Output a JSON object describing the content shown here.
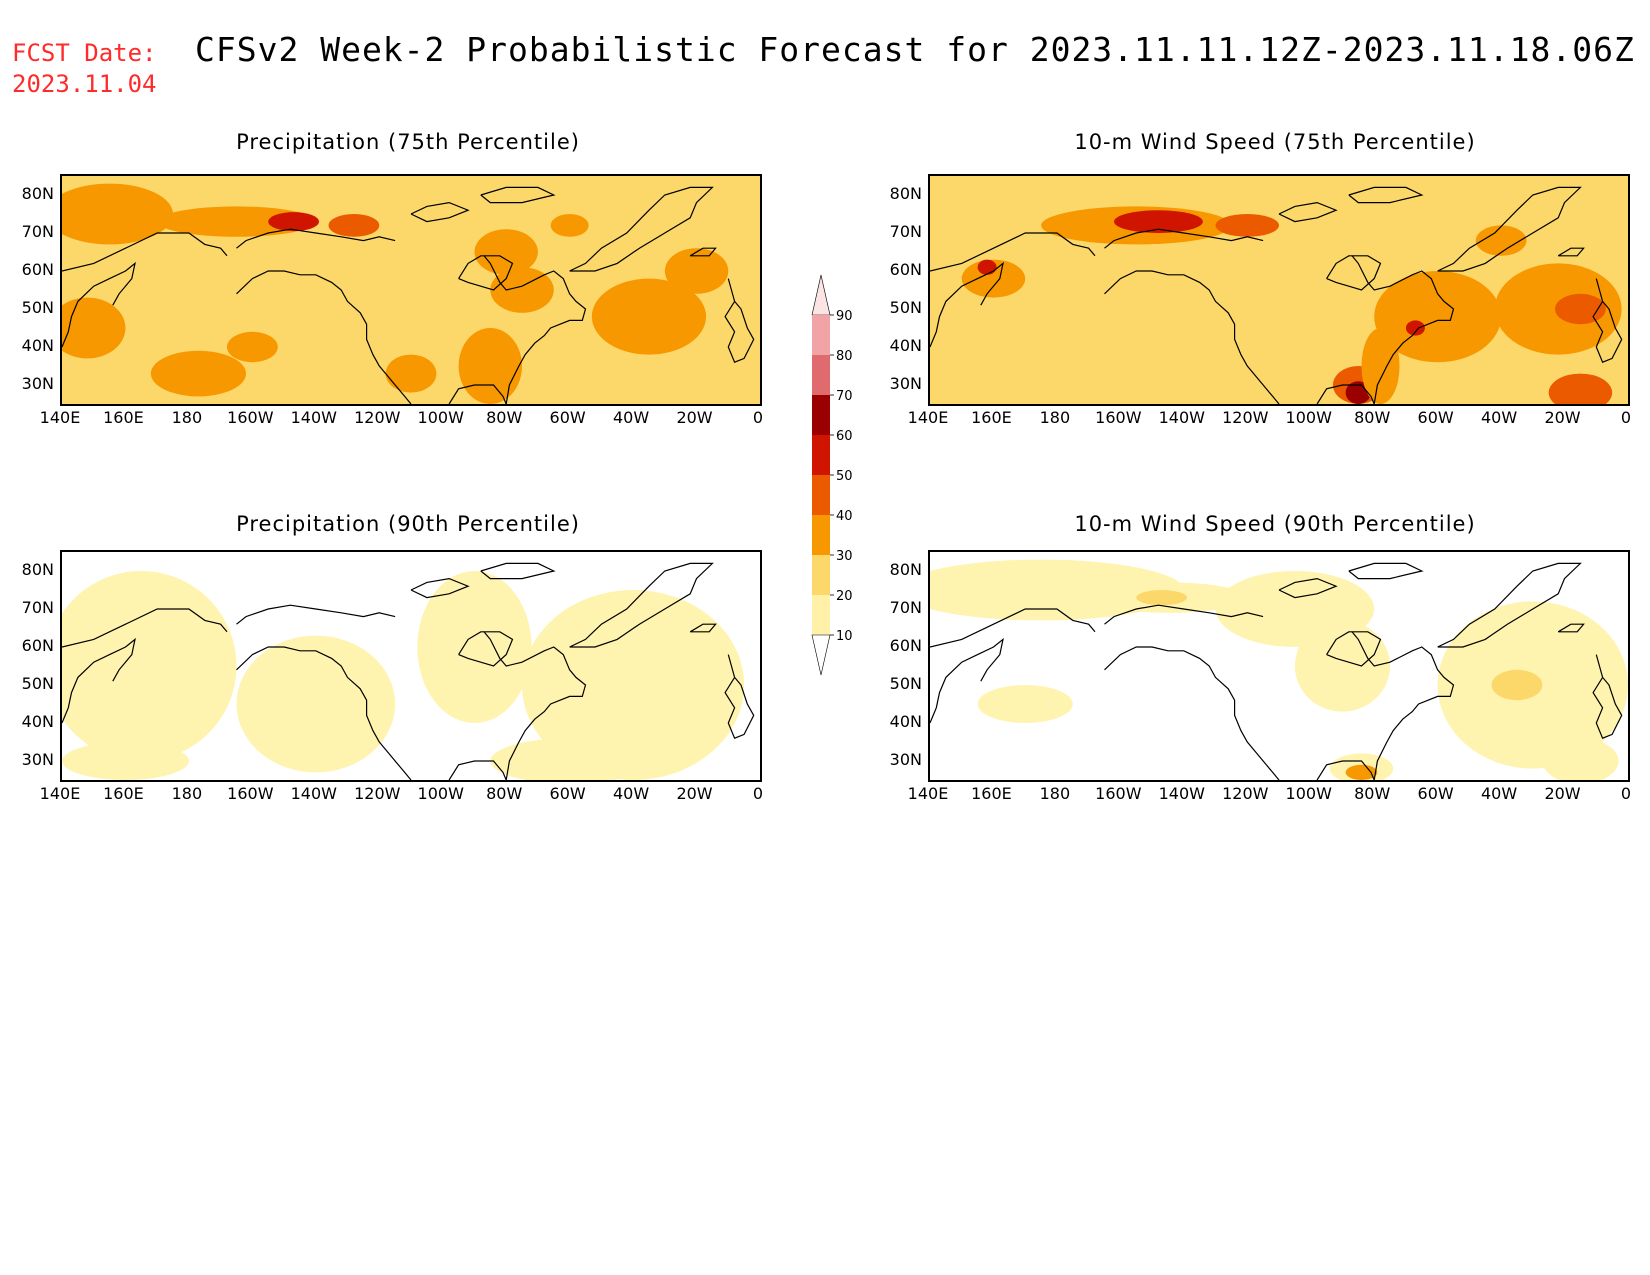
{
  "header": {
    "fcst_label": "FCST Date:",
    "fcst_date": "2023.11.04",
    "title": "CFSv2 Week-2 Probabilistic Forecast for 2023.11.11.12Z-2023.11.18.06Z"
  },
  "axes": {
    "lat_labels": [
      "80N",
      "70N",
      "60N",
      "50N",
      "40N",
      "30N"
    ],
    "lon_labels": [
      "140E",
      "160E",
      "180",
      "160W",
      "140W",
      "120W",
      "100W",
      "80W",
      "60W",
      "40W",
      "20W",
      "0"
    ],
    "lat_range": [
      25,
      85
    ],
    "lon_range": [
      140,
      360
    ]
  },
  "panels": [
    {
      "title": "Precipitation (75th Percentile)",
      "level": "high"
    },
    {
      "title": "10-m Wind Speed (75th Percentile)",
      "level": "high"
    },
    {
      "title": "Precipitation (90th Percentile)",
      "level": "low"
    },
    {
      "title": "10-m Wind Speed (90th Percentile)",
      "level": "low"
    }
  ],
  "colorbar": {
    "levels": [
      "90",
      "80",
      "70",
      "60",
      "50",
      "40",
      "30",
      "20",
      "10"
    ],
    "colors": [
      "#f2a3a6",
      "#e06b6e",
      "#9b0000",
      "#cf1500",
      "#ec5a00",
      "#f79800",
      "#fcd86a",
      "#fff1a8"
    ]
  },
  "palette": {
    "pale": "#fff3b0",
    "yellow": "#fcd86a",
    "orange": "#f79800",
    "dark_orange": "#ec5a00",
    "red": "#cf1500",
    "dark_red": "#9b0000",
    "coast": "#000000"
  }
}
